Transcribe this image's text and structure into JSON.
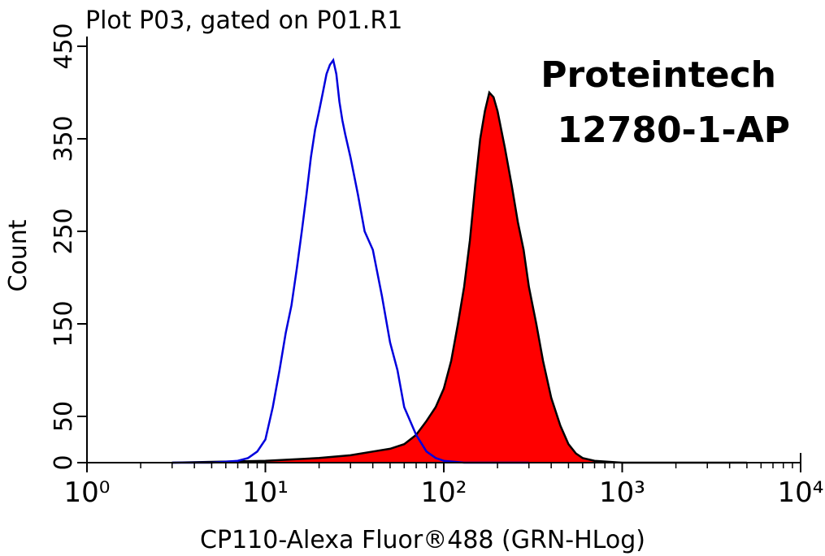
{
  "chart_data": {
    "type": "histogram-overlay",
    "title": "Plot P03, gated on P01.R1",
    "annotations": [
      "Proteintech",
      "12780-1-AP"
    ],
    "x_label": "CP110-Alexa Fluor®488 (GRN-HLog)",
    "y_label": "Count",
    "x_scale": "log",
    "xlim": [
      1,
      10000
    ],
    "xticks": [
      {
        "value": 1,
        "label": "10⁰"
      },
      {
        "value": 10,
        "label": "10¹"
      },
      {
        "value": 100,
        "label": "10²"
      },
      {
        "value": 1000,
        "label": "10³"
      },
      {
        "value": 10000,
        "label": "10⁴"
      }
    ],
    "xminorticks": [
      2,
      3,
      4,
      5,
      6,
      7,
      8,
      9,
      20,
      30,
      40,
      50,
      60,
      70,
      80,
      90,
      200,
      300,
      400,
      500,
      600,
      700,
      800,
      900,
      2000,
      3000,
      4000,
      5000,
      6000,
      7000,
      8000,
      9000
    ],
    "ylim": [
      0,
      450
    ],
    "yticks": [
      0,
      50,
      150,
      250,
      350,
      450
    ],
    "series": [
      {
        "color": "#0000dd",
        "fill": false,
        "x": [
          3,
          5,
          7,
          8,
          9,
          10,
          11,
          12,
          13,
          14,
          15,
          16,
          17,
          18,
          19,
          20,
          21,
          22,
          23,
          24,
          25,
          26,
          27,
          28,
          30,
          33,
          36,
          40,
          45,
          50,
          55,
          60,
          70,
          80,
          90,
          100,
          130,
          300
        ],
        "values": [
          0,
          0,
          2,
          5,
          12,
          25,
          60,
          100,
          140,
          170,
          210,
          250,
          290,
          330,
          360,
          380,
          400,
          420,
          430,
          435,
          420,
          390,
          370,
          355,
          330,
          290,
          250,
          230,
          180,
          130,
          100,
          60,
          30,
          12,
          5,
          2,
          0,
          0
        ]
      },
      {
        "color": "#ff0000",
        "fill": true,
        "x": [
          3,
          10,
          20,
          30,
          40,
          50,
          60,
          70,
          80,
          90,
          100,
          110,
          120,
          130,
          140,
          150,
          160,
          170,
          180,
          190,
          200,
          220,
          240,
          260,
          280,
          300,
          330,
          360,
          400,
          450,
          500,
          550,
          600,
          700,
          1000,
          5000
        ],
        "values": [
          0,
          2,
          5,
          8,
          12,
          15,
          20,
          30,
          45,
          60,
          80,
          110,
          150,
          190,
          240,
          300,
          350,
          380,
          400,
          395,
          380,
          340,
          300,
          260,
          230,
          190,
          150,
          110,
          70,
          40,
          20,
          10,
          5,
          2,
          0,
          0
        ]
      }
    ]
  }
}
